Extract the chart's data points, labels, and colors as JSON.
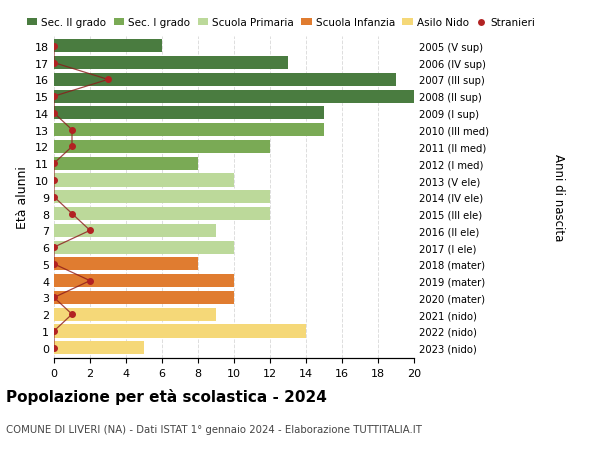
{
  "ages": [
    18,
    17,
    16,
    15,
    14,
    13,
    12,
    11,
    10,
    9,
    8,
    7,
    6,
    5,
    4,
    3,
    2,
    1,
    0
  ],
  "years": [
    "2005 (V sup)",
    "2006 (IV sup)",
    "2007 (III sup)",
    "2008 (II sup)",
    "2009 (I sup)",
    "2010 (III med)",
    "2011 (II med)",
    "2012 (I med)",
    "2013 (V ele)",
    "2014 (IV ele)",
    "2015 (III ele)",
    "2016 (II ele)",
    "2017 (I ele)",
    "2018 (mater)",
    "2019 (mater)",
    "2020 (mater)",
    "2021 (nido)",
    "2022 (nido)",
    "2023 (nido)"
  ],
  "bar_values": [
    6,
    13,
    19,
    20,
    15,
    15,
    12,
    8,
    10,
    12,
    12,
    9,
    10,
    8,
    10,
    10,
    9,
    14,
    5
  ],
  "bar_colors": [
    "#4a7c40",
    "#4a7c40",
    "#4a7c40",
    "#4a7c40",
    "#4a7c40",
    "#7aaa55",
    "#7aaa55",
    "#7aaa55",
    "#bcd99a",
    "#bcd99a",
    "#bcd99a",
    "#bcd99a",
    "#bcd99a",
    "#e07c30",
    "#e07c30",
    "#e07c30",
    "#f5d878",
    "#f5d878",
    "#f5d878"
  ],
  "stranieri_values": [
    0,
    0,
    3,
    0,
    0,
    1,
    1,
    0,
    0,
    0,
    1,
    2,
    0,
    0,
    2,
    0,
    1,
    0,
    0
  ],
  "legend_labels": [
    "Sec. II grado",
    "Sec. I grado",
    "Scuola Primaria",
    "Scuola Infanzia",
    "Asilo Nido",
    "Stranieri"
  ],
  "legend_colors": [
    "#4a7c40",
    "#7aaa55",
    "#bcd99a",
    "#e07c30",
    "#f5d878",
    "#b22222"
  ],
  "title": "Popolazione per età scolastica - 2024",
  "subtitle": "COMUNE DI LIVERI (NA) - Dati ISTAT 1° gennaio 2024 - Elaborazione TUTTITALIA.IT",
  "ylabel_left": "Età alunni",
  "ylabel_right": "Anni di nascita",
  "xlim": [
    0,
    20
  ],
  "xticks": [
    0,
    2,
    4,
    6,
    8,
    10,
    12,
    14,
    16,
    18,
    20
  ],
  "background_color": "#ffffff",
  "grid_color": "#dddddd",
  "figsize": [
    6.0,
    4.6
  ],
  "dpi": 100
}
